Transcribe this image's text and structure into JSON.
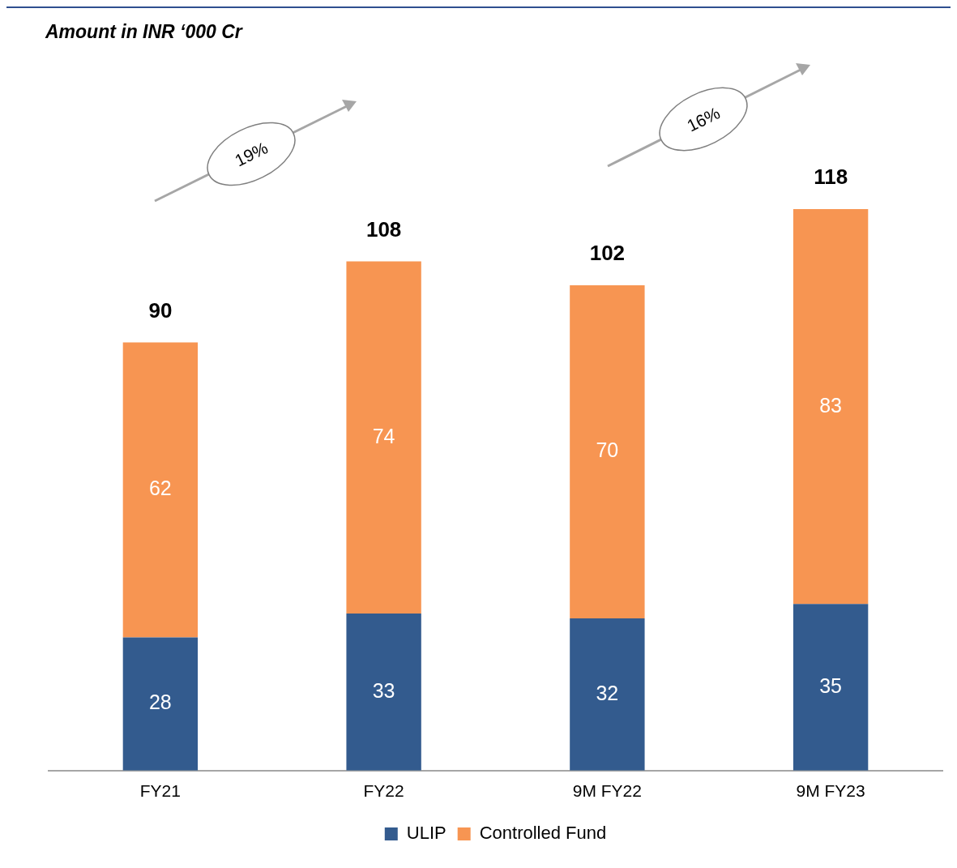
{
  "chart_data": {
    "type": "bar",
    "title": "Amount in INR ‘000 Cr",
    "categories": [
      "FY21",
      "FY22",
      "9M FY22",
      "9M FY23"
    ],
    "stacked": true,
    "data_labels": true,
    "totals": [
      "90",
      "108",
      "102",
      "118"
    ],
    "legend": "bottom",
    "grid": false,
    "series": [
      {
        "name": "ULIP",
        "color": "#335b8e",
        "values": [
          28,
          33,
          32,
          35
        ]
      },
      {
        "name": "Controlled Fund",
        "color": "#f79552",
        "values": [
          62,
          74,
          70,
          83
        ]
      }
    ],
    "annotations": [
      "19%",
      "16%"
    ]
  }
}
